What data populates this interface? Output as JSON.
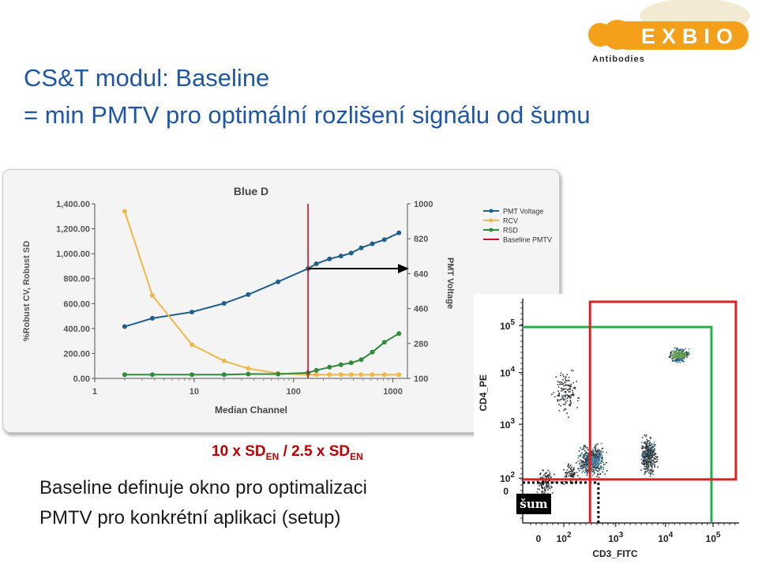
{
  "slide": {
    "title_line1": "CS&T modul: Baseline",
    "title_line2": "= min PMTV pro optimální rozlišení signálu od šumu",
    "sd_label": {
      "part1": "10 x SD",
      "sub1": "EN",
      "part2": " / 2.5 x SD",
      "sub2": "EN"
    },
    "body_line1": "Baseline definuje okno pro optimalizaci",
    "body_line2": "PMTV pro konkrétní aplikaci (setup)"
  },
  "logo": {
    "text": "EXBIO",
    "subtext": "Antibodies",
    "color": "#f5a01a"
  },
  "chart_data": [
    {
      "type": "line",
      "title": "Blue D",
      "xlabel": "Median Channel",
      "ylabel_left": "%Robust CV, Robust SD",
      "ylabel_right": "PMT Voltage",
      "x_scale": "log",
      "xlim": [
        1,
        1400
      ],
      "x_ticks": [
        "1",
        "10",
        "100",
        "1000"
      ],
      "ylim_left": [
        0,
        1400
      ],
      "y_ticks_left": [
        "0.00",
        "200.00",
        "400.00",
        "600.00",
        "800.00",
        "1,000.00",
        "1,200.00",
        "1,400.00"
      ],
      "ylim_right": [
        100,
        1000
      ],
      "y_ticks_right": [
        "100",
        "280",
        "460",
        "640",
        "820",
        "1000"
      ],
      "x_points": [
        2.0,
        3.8,
        9.5,
        20,
        35,
        70,
        140,
        170,
        230,
        300,
        380,
        480,
        620,
        820,
        1150
      ],
      "series": [
        {
          "name": "PMT Voltage",
          "color": "#1f5f8b",
          "axis": "right",
          "values": [
            367,
            410,
            442,
            487,
            532,
            598,
            666,
            691,
            716,
            731,
            746,
            773,
            794,
            815,
            850
          ]
        },
        {
          "name": "RCV",
          "color": "#f0b848",
          "axis": "left",
          "values": [
            1340,
            665,
            270,
            140,
            80,
            40,
            30,
            30,
            30,
            30,
            30,
            30,
            30,
            30,
            30
          ]
        },
        {
          "name": "RSD",
          "color": "#2e8b3a",
          "axis": "left",
          "values": [
            30,
            30,
            30,
            30,
            35,
            35,
            45,
            65,
            90,
            110,
            125,
            150,
            210,
            290,
            360
          ]
        }
      ],
      "baseline": {
        "name": "Baseline PMTV",
        "color": "#c8102e",
        "x": 140
      },
      "legend": [
        "PMT Voltage",
        "RCV",
        "RSD",
        "Baseline PMTV"
      ],
      "legend_position": "right",
      "grid": false
    },
    {
      "type": "scatter",
      "xlabel": "CD3_FITC",
      "ylabel": "CD4_PE",
      "x_scale": "log",
      "y_scale": "log",
      "x_ticks": [
        "0",
        "10^2",
        "10^3",
        "10^4",
        "10^5"
      ],
      "y_ticks": [
        "0",
        "10^2",
        "10^3",
        "10^4",
        "10^5"
      ],
      "annotation": "šum",
      "gates": [
        {
          "name": "red gate",
          "color": "#e0201f"
        },
        {
          "name": "green gate",
          "color": "#22b04b"
        }
      ]
    }
  ]
}
